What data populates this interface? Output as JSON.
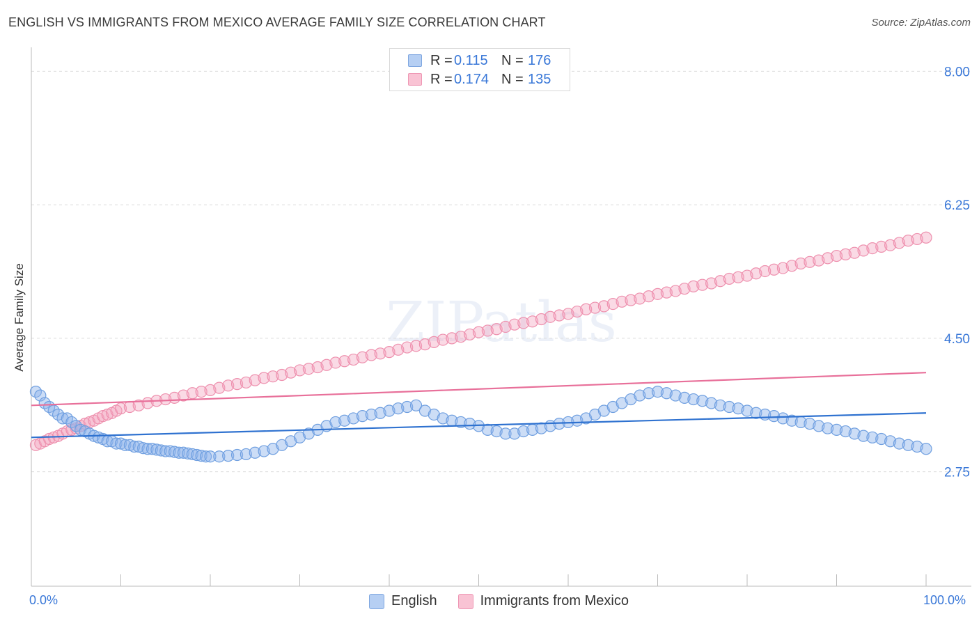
{
  "title": "ENGLISH VS IMMIGRANTS FROM MEXICO AVERAGE FAMILY SIZE CORRELATION CHART",
  "source": "Source: ZipAtlas.com",
  "watermark": "ZIPatlas",
  "legend_top": [
    {
      "r_label": "R =",
      "r_value": "0.115",
      "n_label": "N =",
      "n_value": "176"
    },
    {
      "r_label": "R =",
      "r_value": "0.174",
      "n_label": "N =",
      "n_value": "135"
    }
  ],
  "legend_bottom": [
    "English",
    "Immigrants from Mexico"
  ],
  "chart_data": {
    "type": "scatter",
    "title": "ENGLISH VS IMMIGRANTS FROM MEXICO AVERAGE FAMILY SIZE CORRELATION CHART",
    "xlabel": "",
    "ylabel": "Average Family Size",
    "xlim": [
      0,
      100
    ],
    "ylim": [
      1.25,
      8.25
    ],
    "x_tick_labels": [
      "0.0%",
      "100.0%"
    ],
    "y_ticks": [
      2.75,
      4.5,
      6.25,
      8.0
    ],
    "y_tick_labels": [
      "2.75",
      "4.50",
      "6.25",
      "8.00"
    ],
    "grid": true,
    "legend_position": "top-center",
    "colors": {
      "English": "#8db4ea",
      "Immigrants from Mexico": "#f3a3bd",
      "English_line": "#2f72d0",
      "Immigrants from Mexico_line": "#e8709a"
    },
    "series": [
      {
        "name": "English",
        "r": 0.115,
        "n": 176,
        "trend": {
          "x": [
            0,
            100
          ],
          "y": [
            3.2,
            3.52
          ]
        },
        "points": [
          [
            0.5,
            3.8
          ],
          [
            1.0,
            3.75
          ],
          [
            1.5,
            3.65
          ],
          [
            2.0,
            3.6
          ],
          [
            2.5,
            3.55
          ],
          [
            3.0,
            3.5
          ],
          [
            3.5,
            3.45
          ],
          [
            4.0,
            3.45
          ],
          [
            4.5,
            3.4
          ],
          [
            5.0,
            3.35
          ],
          [
            5.5,
            3.3
          ],
          [
            6.0,
            3.28
          ],
          [
            6.5,
            3.25
          ],
          [
            7.0,
            3.22
          ],
          [
            7.5,
            3.2
          ],
          [
            8.0,
            3.18
          ],
          [
            8.5,
            3.15
          ],
          [
            9.0,
            3.15
          ],
          [
            9.5,
            3.12
          ],
          [
            10.0,
            3.12
          ],
          [
            10.5,
            3.1
          ],
          [
            11.0,
            3.1
          ],
          [
            11.5,
            3.08
          ],
          [
            12.0,
            3.08
          ],
          [
            12.5,
            3.06
          ],
          [
            13.0,
            3.05
          ],
          [
            13.5,
            3.05
          ],
          [
            14.0,
            3.04
          ],
          [
            14.5,
            3.03
          ],
          [
            15.0,
            3.02
          ],
          [
            15.5,
            3.02
          ],
          [
            16.0,
            3.01
          ],
          [
            16.5,
            3.0
          ],
          [
            17.0,
            3.0
          ],
          [
            17.5,
            2.99
          ],
          [
            18.0,
            2.98
          ],
          [
            18.5,
            2.97
          ],
          [
            19.0,
            2.96
          ],
          [
            19.5,
            2.95
          ],
          [
            20.0,
            2.95
          ],
          [
            21.0,
            2.95
          ],
          [
            22.0,
            2.96
          ],
          [
            23.0,
            2.97
          ],
          [
            24.0,
            2.98
          ],
          [
            25.0,
            3.0
          ],
          [
            26.0,
            3.02
          ],
          [
            27.0,
            3.05
          ],
          [
            28.0,
            3.1
          ],
          [
            29.0,
            3.15
          ],
          [
            30.0,
            3.2
          ],
          [
            31.0,
            3.25
          ],
          [
            32.0,
            3.3
          ],
          [
            33.0,
            3.35
          ],
          [
            34.0,
            3.4
          ],
          [
            35.0,
            3.42
          ],
          [
            36.0,
            3.45
          ],
          [
            37.0,
            3.48
          ],
          [
            38.0,
            3.5
          ],
          [
            39.0,
            3.52
          ],
          [
            40.0,
            3.55
          ],
          [
            41.0,
            3.58
          ],
          [
            42.0,
            3.6
          ],
          [
            43.0,
            3.62
          ],
          [
            44.0,
            3.55
          ],
          [
            45.0,
            3.5
          ],
          [
            46.0,
            3.45
          ],
          [
            47.0,
            3.42
          ],
          [
            48.0,
            3.4
          ],
          [
            49.0,
            3.38
          ],
          [
            50.0,
            3.35
          ],
          [
            51.0,
            3.3
          ],
          [
            52.0,
            3.28
          ],
          [
            53.0,
            3.25
          ],
          [
            54.0,
            3.25
          ],
          [
            55.0,
            3.28
          ],
          [
            56.0,
            3.3
          ],
          [
            57.0,
            3.32
          ],
          [
            58.0,
            3.35
          ],
          [
            59.0,
            3.38
          ],
          [
            60.0,
            3.4
          ],
          [
            61.0,
            3.42
          ],
          [
            62.0,
            3.45
          ],
          [
            63.0,
            3.5
          ],
          [
            64.0,
            3.55
          ],
          [
            65.0,
            3.6
          ],
          [
            66.0,
            3.65
          ],
          [
            67.0,
            3.7
          ],
          [
            68.0,
            3.75
          ],
          [
            69.0,
            3.78
          ],
          [
            70.0,
            3.8
          ],
          [
            71.0,
            3.78
          ],
          [
            72.0,
            3.75
          ],
          [
            73.0,
            3.72
          ],
          [
            74.0,
            3.7
          ],
          [
            75.0,
            3.68
          ],
          [
            76.0,
            3.65
          ],
          [
            77.0,
            3.62
          ],
          [
            78.0,
            3.6
          ],
          [
            79.0,
            3.58
          ],
          [
            80.0,
            3.55
          ],
          [
            81.0,
            3.52
          ],
          [
            82.0,
            3.5
          ],
          [
            83.0,
            3.48
          ],
          [
            84.0,
            3.45
          ],
          [
            85.0,
            3.42
          ],
          [
            86.0,
            3.4
          ],
          [
            87.0,
            3.38
          ],
          [
            88.0,
            3.35
          ],
          [
            89.0,
            3.32
          ],
          [
            90.0,
            3.3
          ],
          [
            91.0,
            3.28
          ],
          [
            92.0,
            3.25
          ],
          [
            93.0,
            3.22
          ],
          [
            94.0,
            3.2
          ],
          [
            95.0,
            3.18
          ],
          [
            96.0,
            3.15
          ],
          [
            97.0,
            3.12
          ],
          [
            98.0,
            3.1
          ],
          [
            99.0,
            3.08
          ],
          [
            100.0,
            3.05
          ]
        ]
      },
      {
        "name": "Immigrants from Mexico",
        "r": 0.174,
        "n": 135,
        "trend": {
          "x": [
            0,
            100
          ],
          "y": [
            3.62,
            4.05
          ]
        },
        "points": [
          [
            0.5,
            3.1
          ],
          [
            1.0,
            3.12
          ],
          [
            1.5,
            3.15
          ],
          [
            2.0,
            3.18
          ],
          [
            2.5,
            3.2
          ],
          [
            3.0,
            3.22
          ],
          [
            3.5,
            3.25
          ],
          [
            4.0,
            3.28
          ],
          [
            4.5,
            3.3
          ],
          [
            5.0,
            3.32
          ],
          [
            5.5,
            3.35
          ],
          [
            6.0,
            3.38
          ],
          [
            6.5,
            3.4
          ],
          [
            7.0,
            3.42
          ],
          [
            7.5,
            3.45
          ],
          [
            8.0,
            3.48
          ],
          [
            8.5,
            3.5
          ],
          [
            9.0,
            3.52
          ],
          [
            9.5,
            3.55
          ],
          [
            10.0,
            3.58
          ],
          [
            11.0,
            3.6
          ],
          [
            12.0,
            3.62
          ],
          [
            13.0,
            3.65
          ],
          [
            14.0,
            3.68
          ],
          [
            15.0,
            3.7
          ],
          [
            16.0,
            3.72
          ],
          [
            17.0,
            3.75
          ],
          [
            18.0,
            3.78
          ],
          [
            19.0,
            3.8
          ],
          [
            20.0,
            3.82
          ],
          [
            21.0,
            3.85
          ],
          [
            22.0,
            3.88
          ],
          [
            23.0,
            3.9
          ],
          [
            24.0,
            3.92
          ],
          [
            25.0,
            3.95
          ],
          [
            26.0,
            3.98
          ],
          [
            27.0,
            4.0
          ],
          [
            28.0,
            4.02
          ],
          [
            29.0,
            4.05
          ],
          [
            30.0,
            4.08
          ],
          [
            31.0,
            4.1
          ],
          [
            32.0,
            4.12
          ],
          [
            33.0,
            4.15
          ],
          [
            34.0,
            4.18
          ],
          [
            35.0,
            4.2
          ],
          [
            36.0,
            4.22
          ],
          [
            37.0,
            4.25
          ],
          [
            38.0,
            4.28
          ],
          [
            39.0,
            4.3
          ],
          [
            40.0,
            4.32
          ],
          [
            41.0,
            4.35
          ],
          [
            42.0,
            4.38
          ],
          [
            43.0,
            4.4
          ],
          [
            44.0,
            4.42
          ],
          [
            45.0,
            4.45
          ],
          [
            46.0,
            4.48
          ],
          [
            47.0,
            4.5
          ],
          [
            48.0,
            4.52
          ],
          [
            49.0,
            4.55
          ],
          [
            50.0,
            4.58
          ],
          [
            51.0,
            4.6
          ],
          [
            52.0,
            4.62
          ],
          [
            53.0,
            4.65
          ],
          [
            54.0,
            4.68
          ],
          [
            55.0,
            4.7
          ],
          [
            56.0,
            4.72
          ],
          [
            57.0,
            4.75
          ],
          [
            58.0,
            4.78
          ],
          [
            59.0,
            4.8
          ],
          [
            60.0,
            4.82
          ],
          [
            61.0,
            4.85
          ],
          [
            62.0,
            4.88
          ],
          [
            63.0,
            4.9
          ],
          [
            64.0,
            4.92
          ],
          [
            65.0,
            4.95
          ],
          [
            66.0,
            4.98
          ],
          [
            67.0,
            5.0
          ],
          [
            68.0,
            5.02
          ],
          [
            69.0,
            5.05
          ],
          [
            70.0,
            5.08
          ],
          [
            71.0,
            5.1
          ],
          [
            72.0,
            5.12
          ],
          [
            73.0,
            5.15
          ],
          [
            74.0,
            5.18
          ],
          [
            75.0,
            5.2
          ],
          [
            76.0,
            5.22
          ],
          [
            77.0,
            5.25
          ],
          [
            78.0,
            5.28
          ],
          [
            79.0,
            5.3
          ],
          [
            80.0,
            5.32
          ],
          [
            81.0,
            5.35
          ],
          [
            82.0,
            5.38
          ],
          [
            83.0,
            5.4
          ],
          [
            84.0,
            5.42
          ],
          [
            85.0,
            5.45
          ],
          [
            86.0,
            5.48
          ],
          [
            87.0,
            5.5
          ],
          [
            88.0,
            5.52
          ],
          [
            89.0,
            5.55
          ],
          [
            90.0,
            5.58
          ],
          [
            91.0,
            5.6
          ],
          [
            92.0,
            5.62
          ],
          [
            93.0,
            5.65
          ],
          [
            94.0,
            5.68
          ],
          [
            95.0,
            5.7
          ],
          [
            96.0,
            5.72
          ],
          [
            97.0,
            5.75
          ],
          [
            98.0,
            5.78
          ],
          [
            99.0,
            5.8
          ],
          [
            100.0,
            5.82
          ]
        ]
      }
    ]
  }
}
